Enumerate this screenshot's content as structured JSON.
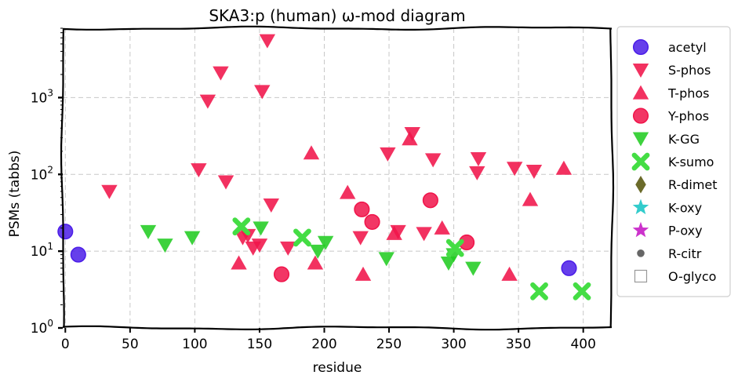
{
  "chart_data": {
    "type": "scatter",
    "title": "SKA3:p (human) ω-mod diagram",
    "xlabel": "residue",
    "ylabel": "PSMs (tabbs)",
    "xlim": [
      -2,
      422
    ],
    "ylim": [
      1,
      8000
    ],
    "y_scale": "log",
    "x_ticks": [
      0,
      50,
      100,
      150,
      200,
      250,
      300,
      350,
      400
    ],
    "y_ticks": [
      {
        "value": 1,
        "base": "10",
        "exp": "0"
      },
      {
        "value": 10,
        "base": "10",
        "exp": "1"
      },
      {
        "value": 100,
        "base": "10",
        "exp": "2"
      },
      {
        "value": 1000,
        "base": "10",
        "exp": "3"
      }
    ],
    "grid": true,
    "legend_position": "outside-right",
    "series": [
      {
        "name": "acetyl",
        "marker": "circle",
        "color": "#4b1de8",
        "points": [
          [
            0,
            18
          ],
          [
            10,
            9
          ],
          [
            389,
            6
          ]
        ]
      },
      {
        "name": "S-phos",
        "marker": "triangle-down",
        "color": "#f0144a",
        "points": [
          [
            34,
            60
          ],
          [
            103,
            115
          ],
          [
            110,
            900
          ],
          [
            120,
            2100
          ],
          [
            124,
            80
          ],
          [
            137,
            15
          ],
          [
            141,
            16
          ],
          [
            145,
            11
          ],
          [
            150,
            12
          ],
          [
            152,
            1200
          ],
          [
            156,
            5500
          ],
          [
            159,
            40
          ],
          [
            172,
            11
          ],
          [
            228,
            15
          ],
          [
            249,
            185
          ],
          [
            257,
            18
          ],
          [
            268,
            340
          ],
          [
            277,
            17
          ],
          [
            284,
            155
          ],
          [
            318,
            105
          ],
          [
            319,
            160
          ],
          [
            347,
            120
          ],
          [
            362,
            110
          ]
        ]
      },
      {
        "name": "T-phos",
        "marker": "triangle-up",
        "color": "#f0144a",
        "points": [
          [
            134,
            7
          ],
          [
            190,
            190
          ],
          [
            193,
            7
          ],
          [
            218,
            58
          ],
          [
            230,
            5
          ],
          [
            254,
            17
          ],
          [
            266,
            290
          ],
          [
            291,
            20
          ],
          [
            343,
            5
          ],
          [
            359,
            47
          ],
          [
            385,
            120
          ]
        ]
      },
      {
        "name": "Y-phos",
        "marker": "circle",
        "color": "#f0144a",
        "points": [
          [
            167,
            5
          ],
          [
            229,
            35
          ],
          [
            237,
            24
          ],
          [
            282,
            46
          ],
          [
            310,
            13
          ]
        ]
      },
      {
        "name": "K-GG",
        "marker": "triangle-down",
        "color": "#22cc22",
        "points": [
          [
            64,
            18
          ],
          [
            77,
            12
          ],
          [
            98,
            15
          ],
          [
            151,
            20
          ],
          [
            195,
            10
          ],
          [
            201,
            13
          ],
          [
            248,
            8
          ],
          [
            296,
            7
          ],
          [
            300,
            9
          ],
          [
            315,
            6
          ]
        ]
      },
      {
        "name": "K-sumo",
        "marker": "x",
        "color": "#44dd44",
        "points": [
          [
            136,
            21
          ],
          [
            183,
            15
          ],
          [
            301,
            11
          ],
          [
            366,
            3
          ],
          [
            399,
            3
          ]
        ]
      },
      {
        "name": "R-dimet",
        "marker": "diamond",
        "color": "#6b6b2a",
        "points": []
      },
      {
        "name": "K-oxy",
        "marker": "star",
        "color": "#33cccc",
        "points": []
      },
      {
        "name": "P-oxy",
        "marker": "star",
        "color": "#cc33cc",
        "points": []
      },
      {
        "name": "R-citr",
        "marker": "small-circle",
        "color": "#666666",
        "points": []
      },
      {
        "name": "O-glyco",
        "marker": "open-square",
        "color": "#999999",
        "points": []
      }
    ]
  }
}
